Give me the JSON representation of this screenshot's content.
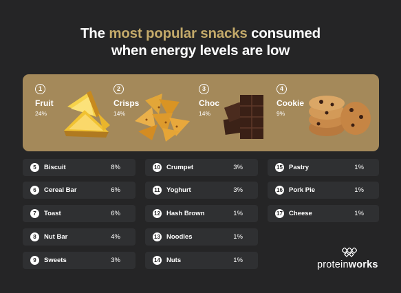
{
  "title": {
    "line1_pre": "The ",
    "line1_accent": "most popular snacks",
    "line1_post": " consumed",
    "line2": "when energy levels are low"
  },
  "colors": {
    "background": "#252526",
    "accent": "#c4aa6a",
    "banner": "#a4895a",
    "row": "#2f3032"
  },
  "top4": [
    {
      "rank": "1",
      "name": "Fruit",
      "pct": "24%",
      "icon": "pineapple-image"
    },
    {
      "rank": "2",
      "name": "Crisps",
      "pct": "14%",
      "icon": "crisps-image"
    },
    {
      "rank": "3",
      "name": "Choc",
      "pct": "14%",
      "icon": "chocolate-image"
    },
    {
      "rank": "4",
      "name": "Cookie",
      "pct": "9%",
      "icon": "cookies-image"
    }
  ],
  "list": [
    {
      "rank": "5",
      "name": "Biscuit",
      "pct": "8%"
    },
    {
      "rank": "6",
      "name": "Cereal Bar",
      "pct": "6%"
    },
    {
      "rank": "7",
      "name": "Toast",
      "pct": "6%"
    },
    {
      "rank": "8",
      "name": "Nut Bar",
      "pct": "4%"
    },
    {
      "rank": "9",
      "name": "Sweets",
      "pct": "3%"
    },
    {
      "rank": "10",
      "name": "Crumpet",
      "pct": "3%"
    },
    {
      "rank": "11",
      "name": "Yoghurt",
      "pct": "3%"
    },
    {
      "rank": "12",
      "name": "Hash Brown",
      "pct": "1%"
    },
    {
      "rank": "13",
      "name": "Noodles",
      "pct": "1%"
    },
    {
      "rank": "14",
      "name": "Nuts",
      "pct": "1%"
    },
    {
      "rank": "15",
      "name": "Pastry",
      "pct": "1%"
    },
    {
      "rank": "16",
      "name": "Pork Pie",
      "pct": "1%"
    },
    {
      "rank": "17",
      "name": "Cheese",
      "pct": "1%"
    }
  ],
  "logo": {
    "light": "protein",
    "bold": "works",
    "icon": "proteinworks-logo-icon"
  }
}
